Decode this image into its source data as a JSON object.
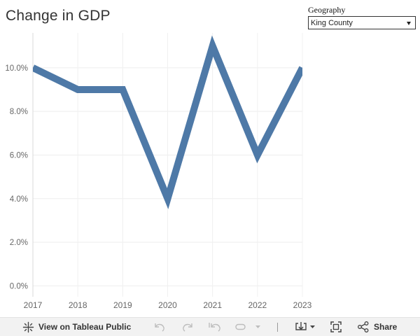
{
  "header": {
    "title": "Change in GDP"
  },
  "filter": {
    "label": "Geography",
    "selected": "King County"
  },
  "chart_data": {
    "type": "line",
    "title": "Change in GDP",
    "x": [
      "2017",
      "2018",
      "2019",
      "2020",
      "2021",
      "2022",
      "2023"
    ],
    "series": [
      {
        "values": [
          10.0,
          9.0,
          9.0,
          4.0,
          11.0,
          6.0,
          10.0
        ]
      }
    ],
    "y_ticks": [
      0,
      2,
      4,
      6,
      8,
      10
    ],
    "y_tick_labels": [
      "0.0%",
      "2.0%",
      "4.0%",
      "6.0%",
      "8.0%",
      "10.0%"
    ],
    "ylim": [
      -0.5,
      11.6
    ],
    "grid": true,
    "line_color": "#4e79a7"
  },
  "toolbar": {
    "view_label": "View on Tableau Public",
    "share_label": "Share"
  }
}
